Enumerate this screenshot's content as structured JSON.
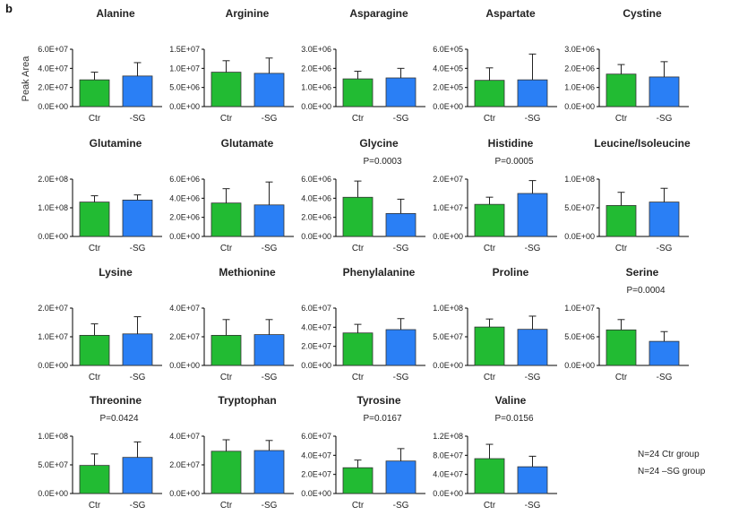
{
  "panel_label": "b",
  "y_axis_label": "Peak Area",
  "note_lines": [
    "N=24 Ctr group",
    "N=24 –SG group"
  ],
  "colors": {
    "ctr": "#22bb33",
    "sg": "#2a7ff5",
    "axis": "#000000",
    "error_bar": "#222222"
  },
  "chart_data": [
    {
      "type": "bar",
      "title": "Alanine",
      "categories": [
        "Ctr",
        "-SG"
      ],
      "values": [
        28000000.0,
        32000000.0
      ],
      "error": [
        8000000.0,
        14000000.0
      ],
      "ylim": [
        0,
        60000000.0
      ],
      "ticks": [
        "0.0E+00",
        "2.0E+07",
        "4.0E+07",
        "6.0E+07"
      ],
      "pvalue": ""
    },
    {
      "type": "bar",
      "title": "Arginine",
      "categories": [
        "Ctr",
        "-SG"
      ],
      "values": [
        9000000.0,
        8700000.0
      ],
      "error": [
        3000000.0,
        4000000.0
      ],
      "ylim": [
        0,
        15000000.0
      ],
      "ticks": [
        "0.0E+00",
        "5.0E+06",
        "1.0E+07",
        "1.5E+07"
      ],
      "pvalue": ""
    },
    {
      "type": "bar",
      "title": "Asparagine",
      "categories": [
        "Ctr",
        "-SG"
      ],
      "values": [
        1450000.0,
        1500000.0
      ],
      "error": [
        400000.0,
        500000.0
      ],
      "ylim": [
        0,
        3000000.0
      ],
      "ticks": [
        "0.0E+00",
        "1.0E+06",
        "2.0E+06",
        "3.0E+06"
      ],
      "pvalue": ""
    },
    {
      "type": "bar",
      "title": "Aspartate",
      "categories": [
        "Ctr",
        "-SG"
      ],
      "values": [
        275000.0,
        280000.0
      ],
      "error": [
        130000.0,
        270000.0
      ],
      "ylim": [
        0,
        600000.0
      ],
      "ticks": [
        "0.0E+00",
        "2.0E+05",
        "4.0E+05",
        "6.0E+05"
      ],
      "pvalue": ""
    },
    {
      "type": "bar",
      "title": "Cystine",
      "categories": [
        "Ctr",
        "-SG"
      ],
      "values": [
        1700000.0,
        1550000.0
      ],
      "error": [
        500000.0,
        800000.0
      ],
      "ylim": [
        0,
        3000000.0
      ],
      "ticks": [
        "0.0E+00",
        "1.0E+06",
        "2.0E+06",
        "3.0E+06"
      ],
      "pvalue": ""
    },
    {
      "type": "bar",
      "title": "Glutamine",
      "categories": [
        "Ctr",
        "-SG"
      ],
      "values": [
        120000000.0,
        127000000.0
      ],
      "error": [
        22000000.0,
        18000000.0
      ],
      "ylim": [
        0,
        200000000.0
      ],
      "ticks": [
        "0.0E+00",
        "1.0E+08",
        "2.0E+08"
      ],
      "pvalue": ""
    },
    {
      "type": "bar",
      "title": "Glutamate",
      "categories": [
        "Ctr",
        "-SG"
      ],
      "values": [
        3500000.0,
        3300000.0
      ],
      "error": [
        1500000.0,
        2400000.0
      ],
      "ylim": [
        0,
        6000000.0
      ],
      "ticks": [
        "0.0E+00",
        "2.0E+06",
        "4.0E+06",
        "6.0E+06"
      ],
      "pvalue": ""
    },
    {
      "type": "bar",
      "title": "Glycine",
      "categories": [
        "Ctr",
        "-SG"
      ],
      "values": [
        4100000.0,
        2400000.0
      ],
      "error": [
        1700000.0,
        1500000.0
      ],
      "ylim": [
        0,
        6000000.0
      ],
      "ticks": [
        "0.0E+00",
        "2.0E+06",
        "4.0E+06",
        "6.0E+06"
      ],
      "pvalue": "P=0.0003"
    },
    {
      "type": "bar",
      "title": "Histidine",
      "categories": [
        "Ctr",
        "-SG"
      ],
      "values": [
        11200000.0,
        15000000.0
      ],
      "error": [
        2500000.0,
        4500000.0
      ],
      "ylim": [
        0,
        20000000.0
      ],
      "ticks": [
        "0.0E+00",
        "1.0E+07",
        "2.0E+07"
      ],
      "pvalue": "P=0.0005"
    },
    {
      "type": "bar",
      "title": "Leucine/Isoleucine",
      "categories": [
        "Ctr",
        "-SG"
      ],
      "values": [
        54000000.0,
        60000000.0
      ],
      "error": [
        23000000.0,
        24000000.0
      ],
      "ylim": [
        0,
        100000000.0
      ],
      "ticks": [
        "0.0E+00",
        "5.0E+07",
        "1.0E+08"
      ],
      "pvalue": ""
    },
    {
      "type": "bar",
      "title": "Lysine",
      "categories": [
        "Ctr",
        "-SG"
      ],
      "values": [
        10500000.0,
        11000000.0
      ],
      "error": [
        4000000.0,
        6000000.0
      ],
      "ylim": [
        0,
        20000000.0
      ],
      "ticks": [
        "0.0E+00",
        "1.0E+07",
        "2.0E+07"
      ],
      "pvalue": ""
    },
    {
      "type": "bar",
      "title": "Methionine",
      "categories": [
        "Ctr",
        "-SG"
      ],
      "values": [
        21000000.0,
        21500000.0
      ],
      "error": [
        11000000.0,
        10500000.0
      ],
      "ylim": [
        0,
        40000000.0
      ],
      "ticks": [
        "0.0E+00",
        "2.0E+07",
        "4.0E+07"
      ],
      "pvalue": ""
    },
    {
      "type": "bar",
      "title": "Phenylalanine",
      "categories": [
        "Ctr",
        "-SG"
      ],
      "values": [
        34000000.0,
        37500000.0
      ],
      "error": [
        9000000.0,
        11500000.0
      ],
      "ylim": [
        0,
        60000000.0
      ],
      "ticks": [
        "0.0E+00",
        "2.0E+07",
        "4.0E+07",
        "6.0E+07"
      ],
      "pvalue": ""
    },
    {
      "type": "bar",
      "title": "Proline",
      "categories": [
        "Ctr",
        "-SG"
      ],
      "values": [
        67000000.0,
        63000000.0
      ],
      "error": [
        14000000.0,
        23000000.0
      ],
      "ylim": [
        0,
        100000000.0
      ],
      "ticks": [
        "0.0E+00",
        "5.0E+07",
        "1.0E+08"
      ],
      "pvalue": ""
    },
    {
      "type": "bar",
      "title": "Serine",
      "categories": [
        "Ctr",
        "-SG"
      ],
      "values": [
        6200000.0,
        4200000.0
      ],
      "error": [
        1800000.0,
        1700000.0
      ],
      "ylim": [
        0,
        10000000.0
      ],
      "ticks": [
        "0.0E+00",
        "5.0E+06",
        "1.0E+07"
      ],
      "pvalue": "P=0.0004"
    },
    {
      "type": "bar",
      "title": "Threonine",
      "categories": [
        "Ctr",
        "-SG"
      ],
      "values": [
        49000000.0,
        63000000.0
      ],
      "error": [
        20000000.0,
        27000000.0
      ],
      "ylim": [
        0,
        100000000.0
      ],
      "ticks": [
        "0.0E+00",
        "5.0E+07",
        "1.0E+08"
      ],
      "pvalue": "P=0.0424"
    },
    {
      "type": "bar",
      "title": "Tryptophan",
      "categories": [
        "Ctr",
        "-SG"
      ],
      "values": [
        29500000.0,
        30000000.0
      ],
      "error": [
        8000000.0,
        7000000.0
      ],
      "ylim": [
        0,
        40000000.0
      ],
      "ticks": [
        "0.0E+00",
        "2.0E+07",
        "4.0E+07"
      ],
      "pvalue": ""
    },
    {
      "type": "bar",
      "title": "Tyrosine",
      "categories": [
        "Ctr",
        "-SG"
      ],
      "values": [
        27000000.0,
        34000000.0
      ],
      "error": [
        8000000.0,
        13000000.0
      ],
      "ylim": [
        0,
        60000000.0
      ],
      "ticks": [
        "0.0E+00",
        "2.0E+07",
        "4.0E+07",
        "6.0E+07"
      ],
      "pvalue": "P=0.0167"
    },
    {
      "type": "bar",
      "title": "Valine",
      "categories": [
        "Ctr",
        "-SG"
      ],
      "values": [
        73000000.0,
        56000000.0
      ],
      "error": [
        30000000.0,
        22000000.0
      ],
      "ylim": [
        0,
        120000000.0
      ],
      "ticks": [
        "0.0E+00",
        "4.0E+07",
        "8.0E+07",
        "1.2E+08"
      ],
      "pvalue": "P=0.0156"
    }
  ]
}
